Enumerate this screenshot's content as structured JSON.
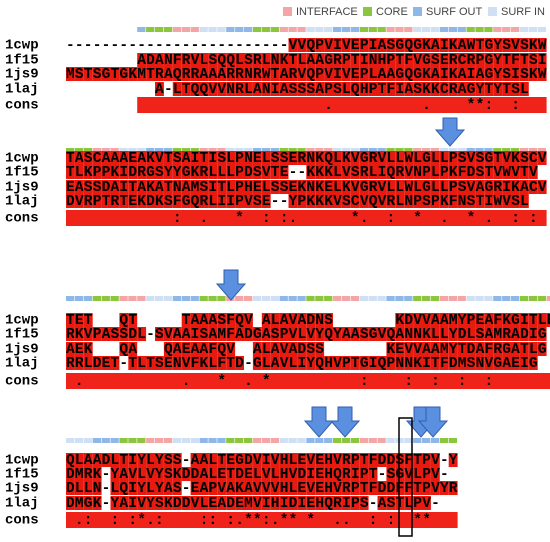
{
  "legend": [
    {
      "label": "INTERFACE",
      "color": "#f4a6a6"
    },
    {
      "label": "CORE",
      "color": "#8cc63f"
    },
    {
      "label": "SURF OUT",
      "color": "#8fb8e8"
    },
    {
      "label": "SURF IN",
      "color": "#cfe0f5"
    }
  ],
  "blocks": [
    {
      "rows": [
        {
          "name": "1cwp",
          "sequence": "-------------------------VVQPVIVEPIASGQGKAIKAWTGYSVSKW"
        },
        {
          "name": "1f15",
          "sequence": "        ADANFRVLSQQLSRLNKTLAAGRPTINHPTFVGSERCRPGYTFTSI"
        },
        {
          "name": "1js9",
          "sequence": "MSTSGTGKMTRAQRRAAARRNRWTARVQPVIVEPLAAGQGKAIKAIAGYSISKW"
        },
        {
          "name": "1laj",
          "sequence": "          A-LTQQVVNRLANIASSSAPSLQHPTFIASKKCRAGYTYTSL"
        }
      ],
      "consensus": {
        "name": "cons",
        "symbols": "                             .          .    **:  :"
      }
    },
    {
      "rows": [
        {
          "name": "1cwp",
          "sequence": "TASCAAAEAKVTSAITISLPNELSSERNKQLKVGRVLLWLGLLPSVSGTVKSCV"
        },
        {
          "name": "1f15",
          "sequence": "TLKPPKIDRGSYYGKRLLLPDSVTE--KKKLVSRLIQRVNPLPKFDSTVWVTV"
        },
        {
          "name": "1js9",
          "sequence": "EASSDAITAKATNAMSITLPHELSSEKNKELKVGRVLLWLGLLPSVAGRIKACV"
        },
        {
          "name": "1laj",
          "sequence": "DVRPTRTEKDKSFGQRLIIPVSE--YPKKKVSCVQVRLNPSPKFNSTIWVSL"
        }
      ],
      "consensus": {
        "name": "cons",
        "symbols": "            :  .   *  : :.      *.  :  *  .  * .  : :"
      }
    },
    {
      "rows": [
        {
          "name": "1cwp",
          "sequence": "TET   QT     TAAASFQV ALAVADNS       KDVVAAMYPEAFKGITLE"
        },
        {
          "name": "1f15",
          "sequence": "RKVPASSDL-SVAAISAMFADGASPVLVYQYAASGVQANNKLLYDLSAMRADIG"
        },
        {
          "name": "1js9",
          "sequence": "AEK   QA   QAEAAFQV  ALAVADSS       KEVVAAMYTDAFRGATLG"
        },
        {
          "name": "1laj",
          "sequence": "RRLDET-TLTSENVFKLFTD-GLAVLIYQHVPTGIQPNNKITFDMSNVGAEIG"
        }
      ],
      "consensus": {
        "name": "cons",
        "symbols": " .           .   *  . *          :    :  :  :  :"
      }
    },
    {
      "rows": [
        {
          "name": "1cwp",
          "sequence": "QLAADLTIYLYSS-AALTEGDVIVHLEVEHVRPTFDDSFTPV-Y"
        },
        {
          "name": "1f15",
          "sequence": "DMRK-YAVLVYSKDDALETDELVLHVDIEHQRIPT-SGVLPV-"
        },
        {
          "name": "1js9",
          "sequence": "DLLN-LQIYLYAS-EAPVAKAVVVHLEVEHVRPTFDDFFTPVYR"
        },
        {
          "name": "1laj",
          "sequence": "DMGK-YAIVYSKDDVLEADEMVIHIDIEHQRIPS-ASTLPV-"
        }
      ],
      "consensus": {
        "name": "cons",
        "symbols": " .:  : :*.:    :: :.**:.** *  ..  : :  **"
      }
    }
  ]
}
